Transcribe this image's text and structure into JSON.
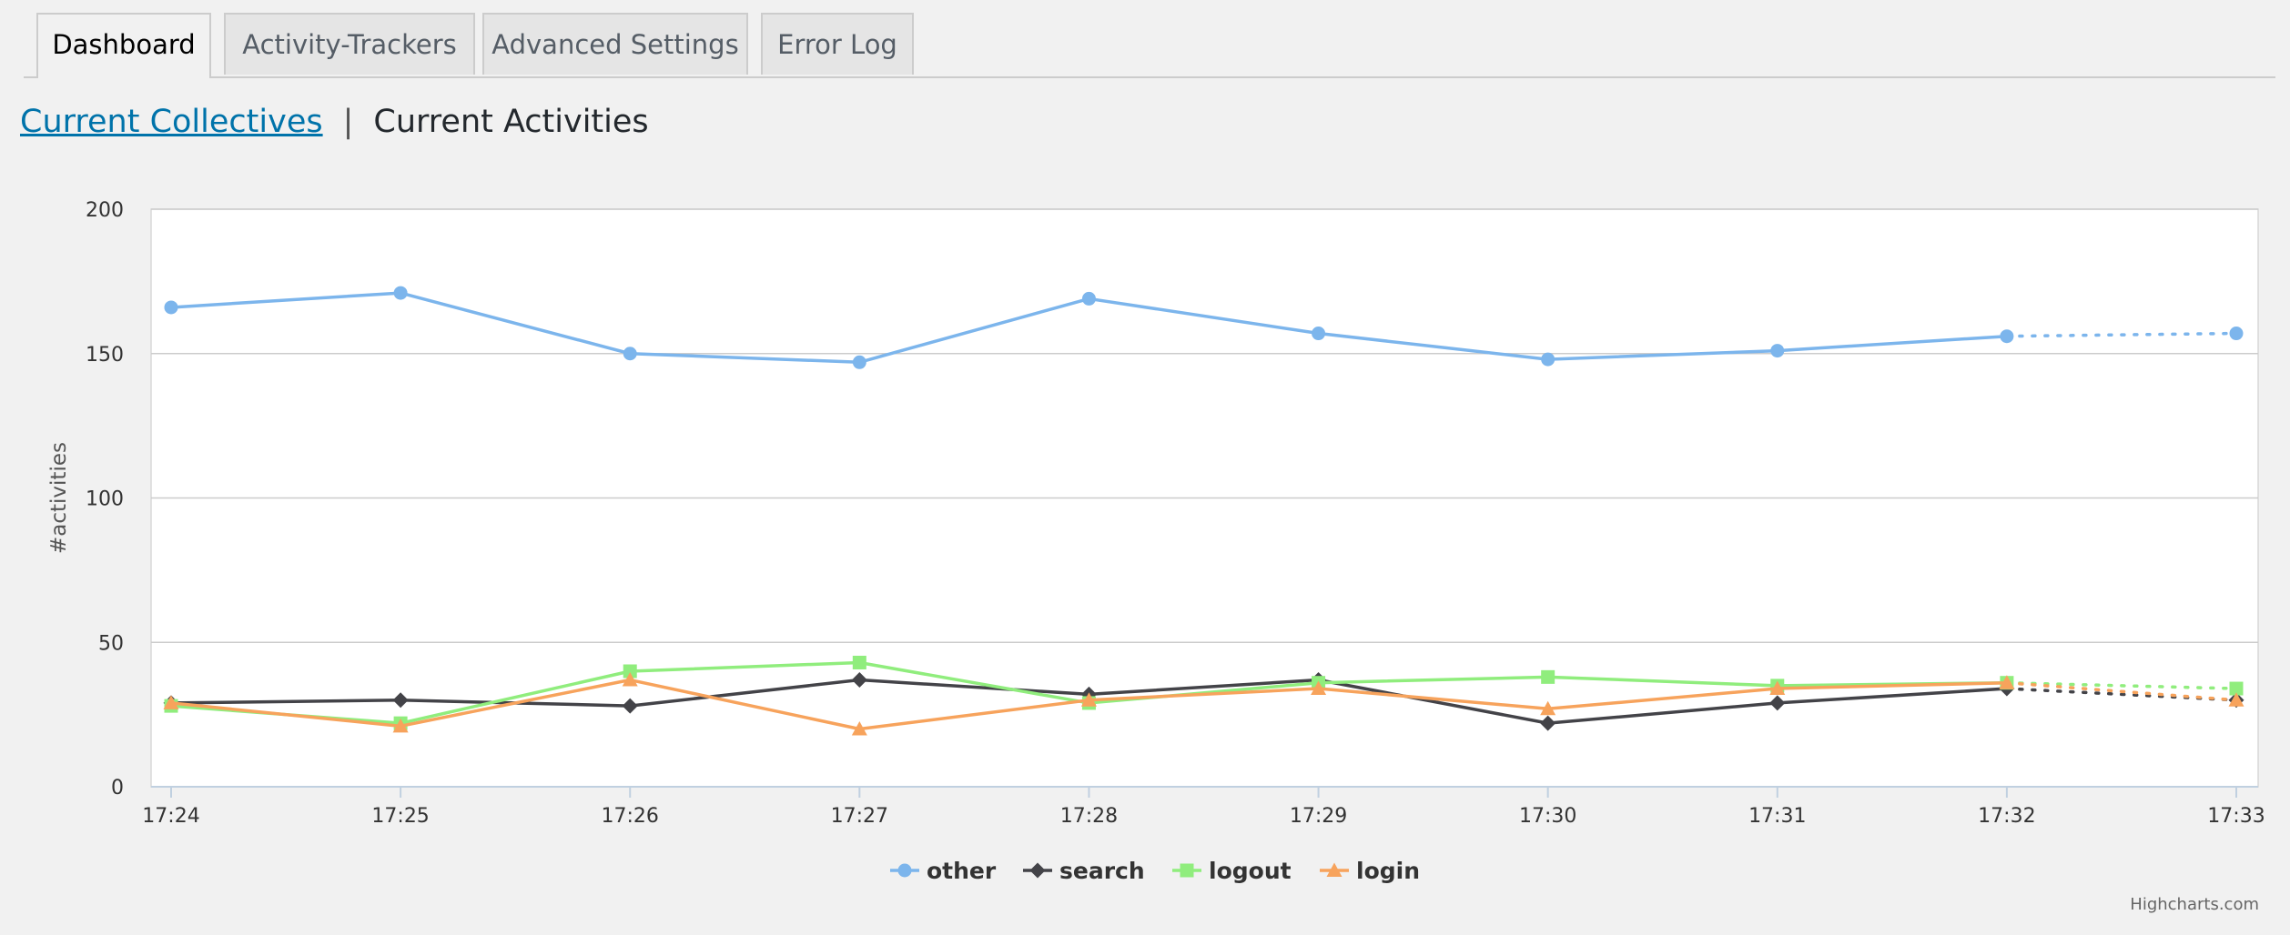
{
  "tabs": [
    {
      "label": "Dashboard",
      "active": true
    },
    {
      "label": "Activity-Trackers",
      "active": false
    },
    {
      "label": "Advanced Settings",
      "active": false
    },
    {
      "label": "Error Log",
      "active": false
    }
  ],
  "subnav": {
    "link_label": "Current Collectives",
    "separator": "|",
    "current_label": "Current Activities"
  },
  "chart_data": {
    "type": "line",
    "title": "",
    "ylabel": "#activities",
    "xlabel": "",
    "categories": [
      "17:24",
      "17:25",
      "17:26",
      "17:27",
      "17:28",
      "17:29",
      "17:30",
      "17:31",
      "17:32",
      "17:33"
    ],
    "ylim": [
      0,
      200
    ],
    "yticks": [
      0,
      50,
      100,
      150,
      200
    ],
    "grid": true,
    "legend_position": "bottom-center",
    "dotted_last_segment": true,
    "series": [
      {
        "name": "other",
        "marker": "circle",
        "color": "#7cb5ec",
        "values": [
          166,
          171,
          150,
          147,
          169,
          157,
          148,
          151,
          156,
          157
        ]
      },
      {
        "name": "search",
        "marker": "diamond",
        "color": "#434348",
        "values": [
          29,
          30,
          28,
          37,
          32,
          37,
          22,
          29,
          34,
          30
        ]
      },
      {
        "name": "logout",
        "marker": "square",
        "color": "#90ed7d",
        "values": [
          28,
          22,
          40,
          43,
          29,
          36,
          38,
          35,
          36,
          34
        ]
      },
      {
        "name": "login",
        "marker": "triangle",
        "color": "#f7a35c",
        "values": [
          29,
          21,
          37,
          20,
          30,
          34,
          27,
          34,
          36,
          30
        ]
      }
    ],
    "credits": "Highcharts.com"
  }
}
